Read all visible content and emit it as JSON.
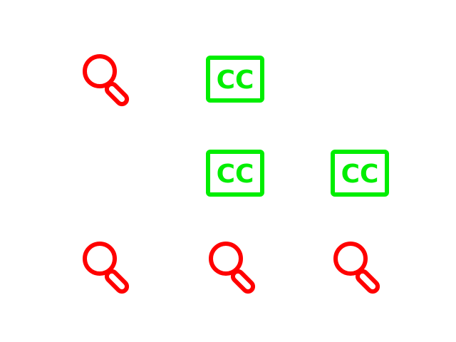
{
  "colors": {
    "search_icon": "#ff0000",
    "cc_icon": "#00ee00",
    "background": "#ffffff"
  },
  "icons": [
    {
      "icon": "search-icon"
    },
    {
      "icon": "closed-captions-icon",
      "label": "CC"
    },
    {
      "icon": "closed-captions-icon",
      "label": "CC"
    },
    {
      "icon": "closed-captions-icon",
      "label": "CC"
    },
    {
      "icon": "search-icon"
    },
    {
      "icon": "search-icon"
    },
    {
      "icon": "search-icon"
    }
  ]
}
